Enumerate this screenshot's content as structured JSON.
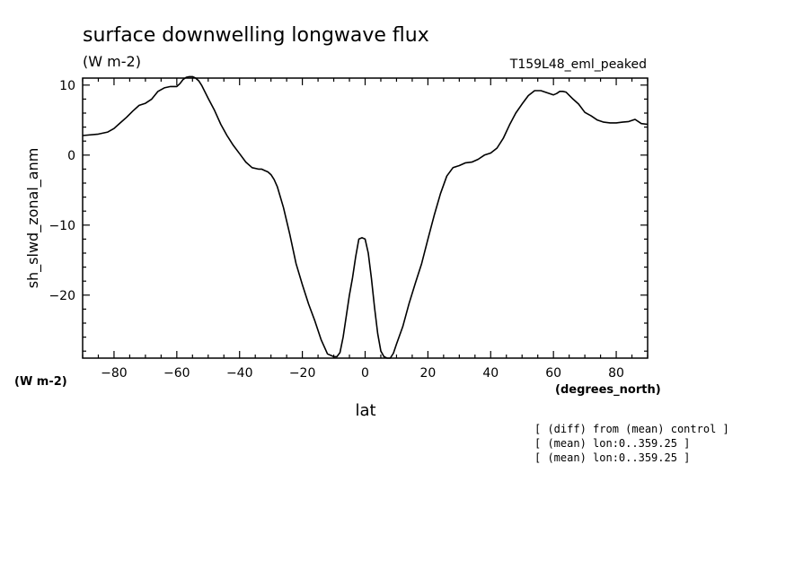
{
  "chart_data": {
    "type": "line",
    "title": "surface downwelling longwave flux",
    "units": "(W m-2)",
    "experiment": "T159L48_eml_peaked",
    "xlabel": "lat",
    "x_units": "(degrees_north)",
    "ylabel": "sh_slwd_zonal_anm",
    "y_units": "(W m-2)",
    "xlim": [
      -90,
      90
    ],
    "ylim": [
      -29,
      11
    ],
    "xticks": [
      -80,
      -60,
      -40,
      -20,
      0,
      20,
      40,
      60,
      80
    ],
    "yticks": [
      -20,
      -10,
      0,
      10
    ],
    "notes": [
      "[ (diff) from (mean) control ]",
      "[ (mean) lon:0..359.25 ]",
      "[ (mean) lon:0..359.25 ]"
    ],
    "series": [
      {
        "x": [
          -90,
          -85,
          -82,
          -80,
          -78,
          -76,
          -74,
          -72,
          -70,
          -68,
          -66,
          -64,
          -62,
          -60,
          -59,
          -58,
          -57,
          -56,
          -55,
          -54,
          -53,
          -52,
          -50,
          -48,
          -46,
          -44,
          -42,
          -40,
          -38,
          -36,
          -34,
          -33,
          -32,
          -31,
          -30,
          -29,
          -28,
          -26,
          -24,
          -22,
          -20,
          -18,
          -16,
          -14,
          -12,
          -10,
          -9,
          -8,
          -7,
          -6,
          -5,
          -4,
          -3,
          -2,
          -1,
          0,
          1,
          2,
          3,
          4,
          5,
          6,
          7,
          8,
          9,
          10,
          12,
          14,
          16,
          18,
          20,
          22,
          24,
          26,
          28,
          30,
          32,
          34,
          36,
          38,
          40,
          42,
          44,
          46,
          48,
          50,
          52,
          54,
          56,
          58,
          60,
          61,
          62,
          63,
          64,
          66,
          68,
          70,
          72,
          74,
          76,
          78,
          80,
          82,
          84,
          86,
          88,
          90
        ],
        "y": [
          2.8,
          3.0,
          3.3,
          3.8,
          4.6,
          5.4,
          6.3,
          7.1,
          7.4,
          8.0,
          9.1,
          9.6,
          9.8,
          9.8,
          10.2,
          10.8,
          11.1,
          11.2,
          11.2,
          11.0,
          10.6,
          9.9,
          8.1,
          6.4,
          4.4,
          2.8,
          1.4,
          0.2,
          -1.0,
          -1.8,
          -2.0,
          -2.0,
          -2.2,
          -2.4,
          -2.8,
          -3.5,
          -4.5,
          -7.5,
          -11.3,
          -15.5,
          -18.5,
          -21.3,
          -23.7,
          -26.4,
          -28.4,
          -28.8,
          -28.8,
          -28.2,
          -26.0,
          -23.0,
          -20.0,
          -17.5,
          -14.5,
          -12.0,
          -11.8,
          -12.0,
          -14.0,
          -17.6,
          -21.8,
          -25.5,
          -28.0,
          -28.8,
          -29.0,
          -29.0,
          -28.3,
          -27.0,
          -24.5,
          -21.2,
          -18.3,
          -15.5,
          -12.0,
          -8.6,
          -5.5,
          -3.0,
          -1.8,
          -1.5,
          -1.1,
          -1.0,
          -0.6,
          0.0,
          0.3,
          1.0,
          2.4,
          4.3,
          6.0,
          7.3,
          8.5,
          9.2,
          9.2,
          8.9,
          8.6,
          8.8,
          9.1,
          9.1,
          9.0,
          8.1,
          7.3,
          6.1,
          5.6,
          5.0,
          4.7,
          4.6,
          4.6,
          4.7,
          4.8,
          5.1,
          4.5,
          4.4
        ]
      }
    ]
  }
}
